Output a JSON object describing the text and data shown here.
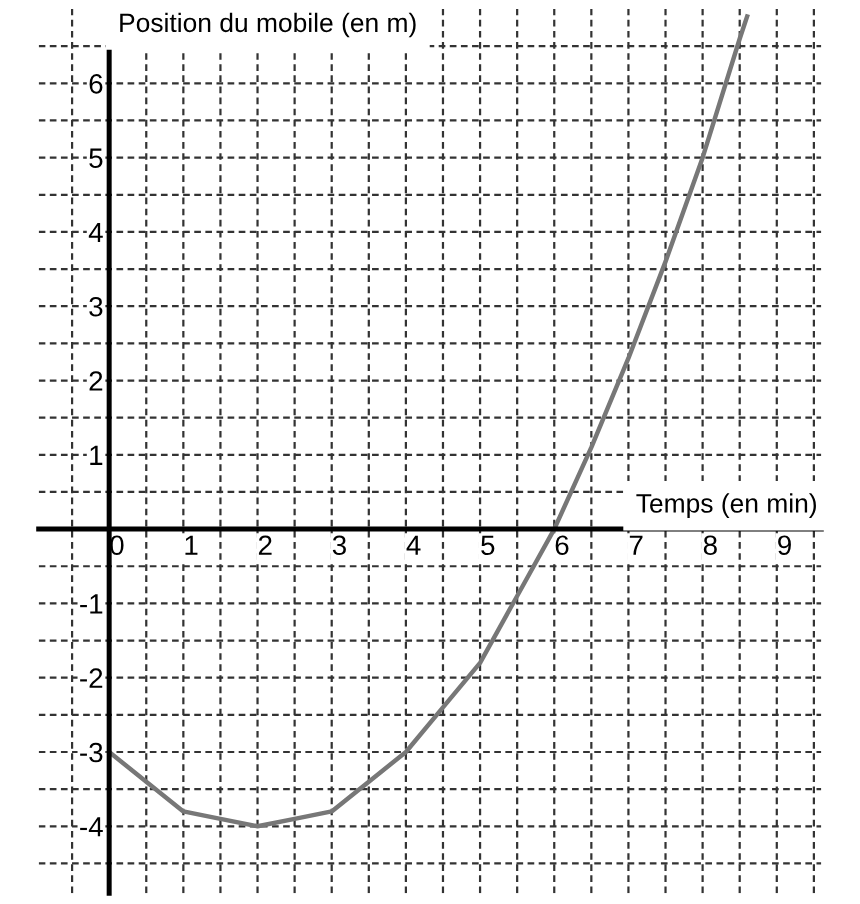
{
  "chart_data": {
    "type": "line",
    "xlabel": "Temps (en min)",
    "ylabel": "Position du mobile (en m)",
    "x": [
      0,
      0.5,
      1,
      1.5,
      2,
      2.5,
      3,
      3.5,
      4,
      4.5,
      5,
      5.5,
      6,
      6.5,
      7,
      7.5,
      8,
      8.5,
      8.6
    ],
    "series": [
      {
        "color": "#777777",
        "values": [
          -3,
          -3.4,
          -3.8,
          -3.9,
          -4,
          -3.9,
          -3.8,
          -3.4,
          -3,
          -2.4,
          -1.8,
          -0.9,
          0,
          1.1,
          2.3,
          3.6,
          5,
          6.6,
          6.9
        ]
      }
    ],
    "xlim": [
      -0.95,
      9.6
    ],
    "ylim": [
      -4.9,
      7
    ],
    "xticks": [
      {
        "value": -0.5,
        "label": null
      },
      0,
      {
        "value": 0.5,
        "label": null
      },
      1,
      {
        "value": 1.5,
        "label": null
      },
      2,
      {
        "value": 2.5,
        "label": null
      },
      3,
      {
        "value": 3.5,
        "label": null
      },
      4,
      {
        "value": 4.5,
        "label": null
      },
      5,
      {
        "value": 5.5,
        "label": null
      },
      6,
      {
        "value": 6.5,
        "label": null
      },
      7,
      {
        "value": 7.5,
        "label": null
      },
      8,
      {
        "value": 8.5,
        "label": null
      },
      9,
      {
        "value": 9.5,
        "label": null
      }
    ],
    "yticks": [
      {
        "value": -4.5,
        "label": null
      },
      -4,
      {
        "value": -3.5,
        "label": null
      },
      -3,
      {
        "value": -2.5,
        "label": null
      },
      -2,
      {
        "value": -1.5,
        "label": null
      },
      -1,
      {
        "value": -0.5,
        "label": null
      },
      {
        "value": 0,
        "label": null
      },
      {
        "value": 0.5,
        "label": null
      },
      1,
      {
        "value": 1.5,
        "label": null
      },
      2,
      {
        "value": 2.5,
        "label": null
      },
      3,
      {
        "value": 3.5,
        "label": null
      },
      4,
      {
        "value": 4.5,
        "label": null
      },
      5,
      {
        "value": 5.5,
        "label": null
      },
      6,
      {
        "value": 6.5,
        "label": null
      }
    ],
    "grid": true,
    "line_style": "solid",
    "marker": "none"
  }
}
